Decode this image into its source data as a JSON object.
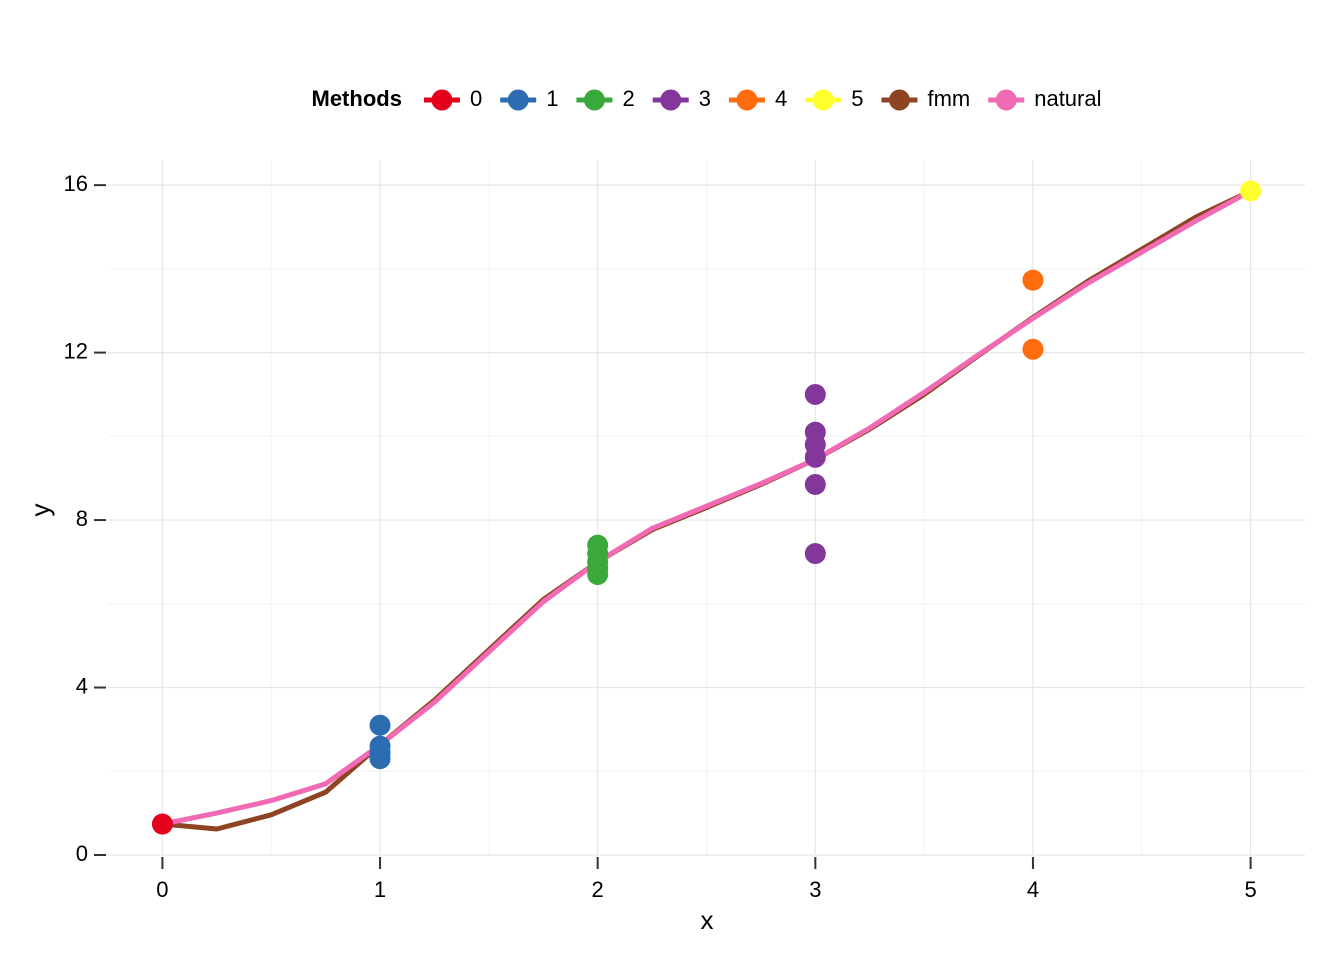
{
  "chart_data": {
    "type": "scatter",
    "legend_title": "Methods",
    "x_label": "x",
    "y_label": "y",
    "xlim": [
      -0.25,
      5.25
    ],
    "ylim": [
      0,
      16.6
    ],
    "xticks": [
      0,
      1,
      2,
      3,
      4,
      5
    ],
    "yticks": [
      0,
      4,
      8,
      12,
      16
    ],
    "x_minor_grid": [
      0.5,
      1.5,
      2.5,
      3.5,
      4.5
    ],
    "y_minor_grid": [
      2,
      6,
      10,
      14
    ],
    "grid": true,
    "legend_position": "top",
    "series": [
      {
        "name": "0",
        "mode": "points",
        "color": "#e3001b",
        "x": [
          0
        ],
        "values": [
          0.74
        ]
      },
      {
        "name": "1",
        "mode": "points",
        "color": "#2c6db2",
        "x": [
          1,
          1,
          1,
          1
        ],
        "values": [
          3.1,
          2.6,
          2.45,
          2.3
        ]
      },
      {
        "name": "2",
        "mode": "points",
        "color": "#3ba83b",
        "x": [
          2,
          2,
          2,
          2,
          2
        ],
        "values": [
          7.4,
          7.2,
          7.0,
          6.85,
          6.7
        ]
      },
      {
        "name": "3",
        "mode": "points",
        "color": "#83379a",
        "x": [
          3,
          3,
          3,
          3,
          3,
          3
        ],
        "values": [
          11.0,
          10.1,
          9.8,
          9.5,
          8.85,
          7.2
        ]
      },
      {
        "name": "4",
        "mode": "points",
        "color": "#ff6c0e",
        "x": [
          4,
          4
        ],
        "values": [
          13.73,
          12.08
        ]
      },
      {
        "name": "5",
        "mode": "points",
        "color": "#ffff2e",
        "x": [
          5
        ],
        "values": [
          15.86
        ]
      },
      {
        "name": "fmm",
        "mode": "line",
        "color": "#8e4422",
        "x": [
          0,
          0.25,
          0.5,
          0.75,
          1,
          1.25,
          1.5,
          1.75,
          2,
          2.25,
          2.5,
          2.75,
          3,
          3.25,
          3.5,
          3.75,
          4,
          4.25,
          4.5,
          4.75,
          5
        ],
        "values": [
          0.74,
          0.62,
          0.96,
          1.5,
          2.63,
          3.7,
          4.9,
          6.1,
          7.0,
          7.77,
          8.3,
          8.85,
          9.45,
          10.17,
          11.0,
          11.93,
          12.84,
          13.7,
          14.47,
          15.24,
          15.86
        ]
      },
      {
        "name": "natural",
        "mode": "line",
        "color": "#f06ab4",
        "x": [
          0,
          0.25,
          0.5,
          0.75,
          1,
          1.25,
          1.5,
          1.75,
          2,
          2.25,
          2.5,
          2.75,
          3,
          3.25,
          3.5,
          3.75,
          4,
          4.25,
          4.5,
          4.75,
          5
        ],
        "values": [
          0.74,
          1.0,
          1.3,
          1.7,
          2.63,
          3.65,
          4.85,
          6.05,
          7.0,
          7.8,
          8.33,
          8.87,
          9.45,
          10.2,
          11.05,
          11.95,
          12.82,
          13.65,
          14.4,
          15.15,
          15.86
        ]
      }
    ]
  }
}
